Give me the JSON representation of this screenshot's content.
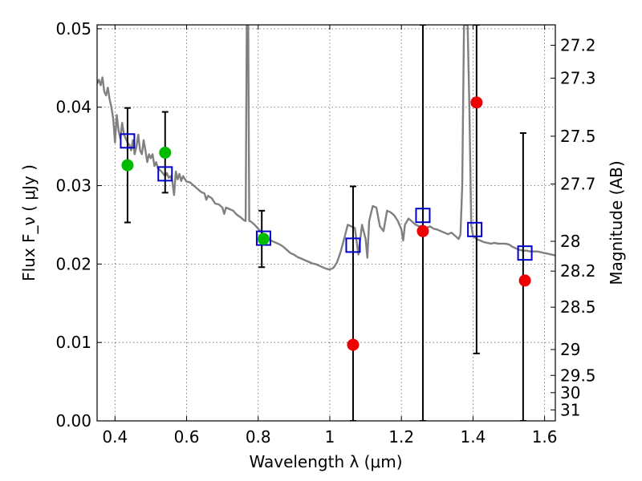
{
  "chart_data": {
    "type": "scatter",
    "xlabel": "Wavelength  λ (μm)",
    "ylabel": "Flux  F_ν  ( μJy )",
    "ylabel_right": "Magnitude (AB)",
    "xlim": [
      0.35,
      1.63
    ],
    "ylim": [
      0.0,
      0.0505
    ],
    "grid": true,
    "x_ticks": [
      0.4,
      0.6,
      0.8,
      1.0,
      1.2,
      1.4,
      1.6
    ],
    "x_tick_labels": [
      "0.4",
      "0.6",
      "0.8",
      "1",
      "1.2",
      "1.4",
      "1.6"
    ],
    "y_ticks": [
      0.0,
      0.01,
      0.02,
      0.03,
      0.04,
      0.05
    ],
    "y_tick_labels": [
      "0.00",
      "0.01",
      "0.02",
      "0.03",
      "0.04",
      "0.05"
    ],
    "right_ticks": [
      {
        "label": "27.2",
        "flux": 0.0479
      },
      {
        "label": "27.3",
        "flux": 0.0437
      },
      {
        "label": "27.5",
        "flux": 0.0363
      },
      {
        "label": "27.7",
        "flux": 0.0302
      },
      {
        "label": "28",
        "flux": 0.0229
      },
      {
        "label": "28.2",
        "flux": 0.0191
      },
      {
        "label": "28.5",
        "flux": 0.0145
      },
      {
        "label": "29",
        "flux": 0.0091
      },
      {
        "label": "29.5",
        "flux": 0.0058
      },
      {
        "label": "30",
        "flux": 0.0036
      },
      {
        "label": "31",
        "flux": 0.0014
      }
    ],
    "series": [
      {
        "kind": "model-spectrum",
        "color": "#808080",
        "points": [
          [
            0.35,
            0.043
          ],
          [
            0.355,
            0.0435
          ],
          [
            0.36,
            0.0428
          ],
          [
            0.365,
            0.0438
          ],
          [
            0.37,
            0.042
          ],
          [
            0.375,
            0.0415
          ],
          [
            0.38,
            0.0425
          ],
          [
            0.385,
            0.041
          ],
          [
            0.39,
            0.04
          ],
          [
            0.395,
            0.0385
          ],
          [
            0.4,
            0.0355
          ],
          [
            0.405,
            0.039
          ],
          [
            0.41,
            0.037
          ],
          [
            0.415,
            0.036
          ],
          [
            0.42,
            0.038
          ],
          [
            0.425,
            0.0365
          ],
          [
            0.43,
            0.036
          ],
          [
            0.435,
            0.0355
          ],
          [
            0.44,
            0.0352
          ],
          [
            0.445,
            0.0345
          ],
          [
            0.45,
            0.0358
          ],
          [
            0.455,
            0.034
          ],
          [
            0.46,
            0.035
          ],
          [
            0.465,
            0.0365
          ],
          [
            0.47,
            0.0345
          ],
          [
            0.475,
            0.034
          ],
          [
            0.48,
            0.0358
          ],
          [
            0.485,
            0.0345
          ],
          [
            0.49,
            0.033
          ],
          [
            0.495,
            0.034
          ],
          [
            0.5,
            0.0335
          ],
          [
            0.505,
            0.034
          ],
          [
            0.51,
            0.0325
          ],
          [
            0.515,
            0.033
          ],
          [
            0.52,
            0.0322
          ],
          [
            0.525,
            0.032
          ],
          [
            0.53,
            0.0318
          ],
          [
            0.535,
            0.0315
          ],
          [
            0.54,
            0.0312
          ],
          [
            0.545,
            0.0316
          ],
          [
            0.55,
            0.031
          ],
          [
            0.555,
            0.0312
          ],
          [
            0.56,
            0.0306
          ],
          [
            0.565,
            0.0288
          ],
          [
            0.57,
            0.0318
          ],
          [
            0.575,
            0.0308
          ],
          [
            0.58,
            0.0315
          ],
          [
            0.585,
            0.0306
          ],
          [
            0.59,
            0.0312
          ],
          [
            0.6,
            0.0305
          ],
          [
            0.61,
            0.0304
          ],
          [
            0.62,
            0.03
          ],
          [
            0.63,
            0.0296
          ],
          [
            0.64,
            0.0292
          ],
          [
            0.65,
            0.029
          ],
          [
            0.655,
            0.0282
          ],
          [
            0.66,
            0.0287
          ],
          [
            0.67,
            0.0284
          ],
          [
            0.68,
            0.0277
          ],
          [
            0.69,
            0.0276
          ],
          [
            0.7,
            0.0272
          ],
          [
            0.705,
            0.0264
          ],
          [
            0.71,
            0.0272
          ],
          [
            0.72,
            0.027
          ],
          [
            0.73,
            0.0268
          ],
          [
            0.74,
            0.0263
          ],
          [
            0.75,
            0.026
          ],
          [
            0.76,
            0.0256
          ],
          [
            0.765,
            0.0255
          ],
          [
            0.768,
            0.0505
          ],
          [
            0.772,
            0.0505
          ],
          [
            0.775,
            0.0255
          ],
          [
            0.78,
            0.0254
          ],
          [
            0.79,
            0.025
          ],
          [
            0.8,
            0.0245
          ],
          [
            0.81,
            0.024
          ],
          [
            0.82,
            0.0236
          ],
          [
            0.83,
            0.0232
          ],
          [
            0.84,
            0.0229
          ],
          [
            0.85,
            0.0227
          ],
          [
            0.86,
            0.0225
          ],
          [
            0.87,
            0.0222
          ],
          [
            0.88,
            0.0218
          ],
          [
            0.89,
            0.0214
          ],
          [
            0.9,
            0.0212
          ],
          [
            0.91,
            0.0209
          ],
          [
            0.92,
            0.0207
          ],
          [
            0.93,
            0.0205
          ],
          [
            0.94,
            0.0203
          ],
          [
            0.95,
            0.0201
          ],
          [
            0.96,
            0.02
          ],
          [
            0.97,
            0.0198
          ],
          [
            0.98,
            0.0196
          ],
          [
            0.99,
            0.0194
          ],
          [
            1.0,
            0.0193
          ],
          [
            1.01,
            0.0195
          ],
          [
            1.02,
            0.0202
          ],
          [
            1.03,
            0.0215
          ],
          [
            1.04,
            0.0232
          ],
          [
            1.05,
            0.025
          ],
          [
            1.06,
            0.0248
          ],
          [
            1.07,
            0.0246
          ],
          [
            1.08,
            0.0212
          ],
          [
            1.09,
            0.025
          ],
          [
            1.1,
            0.0232
          ],
          [
            1.105,
            0.0208
          ],
          [
            1.11,
            0.0255
          ],
          [
            1.12,
            0.0274
          ],
          [
            1.13,
            0.0272
          ],
          [
            1.14,
            0.0248
          ],
          [
            1.15,
            0.0242
          ],
          [
            1.16,
            0.0268
          ],
          [
            1.17,
            0.0266
          ],
          [
            1.18,
            0.0262
          ],
          [
            1.19,
            0.0255
          ],
          [
            1.2,
            0.0244
          ],
          [
            1.205,
            0.023
          ],
          [
            1.21,
            0.025
          ],
          [
            1.22,
            0.0258
          ],
          [
            1.23,
            0.0254
          ],
          [
            1.24,
            0.025
          ],
          [
            1.25,
            0.0248
          ],
          [
            1.26,
            0.0249
          ],
          [
            1.27,
            0.0246
          ],
          [
            1.28,
            0.0248
          ],
          [
            1.29,
            0.0245
          ],
          [
            1.3,
            0.0244
          ],
          [
            1.31,
            0.0242
          ],
          [
            1.32,
            0.024
          ],
          [
            1.33,
            0.0238
          ],
          [
            1.34,
            0.024
          ],
          [
            1.35,
            0.0236
          ],
          [
            1.36,
            0.0232
          ],
          [
            1.365,
            0.0238
          ],
          [
            1.37,
            0.03
          ],
          [
            1.375,
            0.0505
          ],
          [
            1.38,
            0.0505
          ],
          [
            1.385,
            0.0505
          ],
          [
            1.39,
            0.04
          ],
          [
            1.395,
            0.025
          ],
          [
            1.4,
            0.0236
          ],
          [
            1.41,
            0.0232
          ],
          [
            1.42,
            0.023
          ],
          [
            1.43,
            0.0228
          ],
          [
            1.44,
            0.0227
          ],
          [
            1.45,
            0.0226
          ],
          [
            1.46,
            0.0227
          ],
          [
            1.47,
            0.0226
          ],
          [
            1.48,
            0.0226
          ],
          [
            1.49,
            0.0226
          ],
          [
            1.5,
            0.0225
          ],
          [
            1.51,
            0.0222
          ],
          [
            1.52,
            0.022
          ],
          [
            1.53,
            0.0218
          ],
          [
            1.54,
            0.0217
          ],
          [
            1.55,
            0.0217
          ],
          [
            1.56,
            0.0216
          ],
          [
            1.57,
            0.0216
          ],
          [
            1.58,
            0.0216
          ],
          [
            1.59,
            0.0215
          ],
          [
            1.6,
            0.0214
          ],
          [
            1.61,
            0.0213
          ],
          [
            1.62,
            0.0212
          ],
          [
            1.63,
            0.0211
          ]
        ]
      },
      {
        "kind": "observed-with-errors",
        "color": "#000000",
        "points": [
          {
            "x": 0.435,
            "low": 0.0253,
            "high": 0.0399
          },
          {
            "x": 0.54,
            "low": 0.0291,
            "high": 0.0394
          },
          {
            "x": 0.81,
            "low": 0.0196,
            "high": 0.0268
          },
          {
            "x": 1.065,
            "low": 0.0,
            "high": 0.0299
          },
          {
            "x": 1.26,
            "low": 0.0,
            "high": 0.0505
          },
          {
            "x": 1.41,
            "low": 0.0086,
            "high": 0.0505
          },
          {
            "x": 1.54,
            "low": 0.0,
            "high": 0.0367
          }
        ]
      },
      {
        "kind": "model-photometry",
        "color": "#0000cc",
        "marker": "square",
        "points": [
          [
            0.435,
            0.0357
          ],
          [
            0.54,
            0.0315
          ],
          [
            0.815,
            0.0233
          ],
          [
            1.065,
            0.0224
          ],
          [
            1.26,
            0.0262
          ],
          [
            1.405,
            0.0244
          ],
          [
            1.545,
            0.0214
          ]
        ]
      },
      {
        "kind": "detections",
        "color": "#00bb00",
        "marker": "circle",
        "points": [
          [
            0.435,
            0.0326
          ],
          [
            0.54,
            0.0342
          ],
          [
            0.815,
            0.0232
          ]
        ]
      },
      {
        "kind": "non-detections",
        "color": "#ee0000",
        "marker": "circle",
        "points": [
          [
            1.065,
            0.0097
          ],
          [
            1.26,
            0.0242
          ],
          [
            1.41,
            0.0406
          ],
          [
            1.545,
            0.0179
          ]
        ]
      }
    ]
  }
}
